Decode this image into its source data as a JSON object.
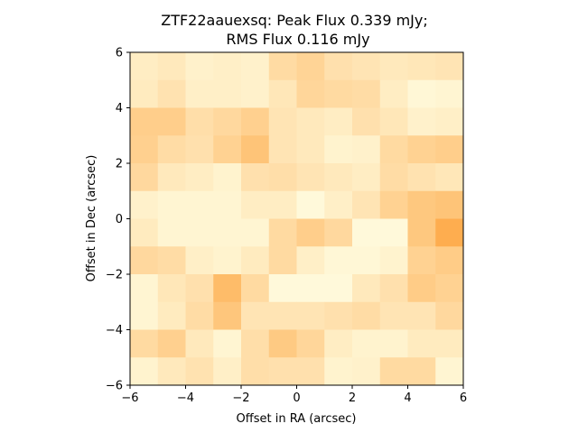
{
  "chart_data": {
    "type": "heatmap",
    "title": [
      "ZTF22aauexsq: Peak Flux 0.339 mJy;",
      "RMS Flux 0.116 mJy"
    ],
    "xlabel": "Offset in RA (arcsec)",
    "ylabel": "Offset in Dec (arcsec)",
    "xlim": [
      -6,
      6
    ],
    "ylim": [
      -6,
      6
    ],
    "xticks": [
      "−6",
      "−4",
      "−2",
      "0",
      "2",
      "4",
      "6"
    ],
    "yticks": [
      "−6",
      "−4",
      "−2",
      "0",
      "2",
      "4",
      "6"
    ],
    "colormap": "YlOrBr",
    "color_low": "#ffffe5",
    "color_high": "#fe9929",
    "grid": false,
    "rows_top_to_bottom": [
      [
        0.18,
        0.22,
        0.14,
        0.16,
        0.14,
        0.35,
        0.42,
        0.3,
        0.26,
        0.22,
        0.24,
        0.26
      ],
      [
        0.2,
        0.28,
        0.16,
        0.16,
        0.14,
        0.24,
        0.4,
        0.36,
        0.34,
        0.18,
        0.08,
        0.1
      ],
      [
        0.48,
        0.48,
        0.32,
        0.38,
        0.46,
        0.26,
        0.22,
        0.18,
        0.3,
        0.24,
        0.14,
        0.16
      ],
      [
        0.46,
        0.34,
        0.3,
        0.44,
        0.58,
        0.26,
        0.22,
        0.12,
        0.14,
        0.36,
        0.44,
        0.48
      ],
      [
        0.38,
        0.22,
        0.18,
        0.12,
        0.3,
        0.32,
        0.26,
        0.22,
        0.18,
        0.34,
        0.28,
        0.24
      ],
      [
        0.14,
        0.1,
        0.1,
        0.1,
        0.18,
        0.18,
        0.06,
        0.16,
        0.26,
        0.44,
        0.54,
        0.58
      ],
      [
        0.2,
        0.1,
        0.1,
        0.1,
        0.1,
        0.36,
        0.48,
        0.38,
        0.06,
        0.06,
        0.54,
        0.8
      ],
      [
        0.38,
        0.34,
        0.16,
        0.12,
        0.2,
        0.36,
        0.16,
        0.08,
        0.08,
        0.12,
        0.44,
        0.5
      ],
      [
        0.1,
        0.24,
        0.3,
        0.66,
        0.36,
        0.06,
        0.06,
        0.06,
        0.22,
        0.3,
        0.5,
        0.44
      ],
      [
        0.1,
        0.2,
        0.34,
        0.56,
        0.26,
        0.26,
        0.26,
        0.3,
        0.34,
        0.26,
        0.26,
        0.38
      ],
      [
        0.36,
        0.46,
        0.22,
        0.1,
        0.32,
        0.52,
        0.4,
        0.18,
        0.12,
        0.12,
        0.2,
        0.2
      ],
      [
        0.12,
        0.22,
        0.28,
        0.16,
        0.32,
        0.3,
        0.3,
        0.12,
        0.14,
        0.36,
        0.36,
        0.1
      ]
    ]
  }
}
